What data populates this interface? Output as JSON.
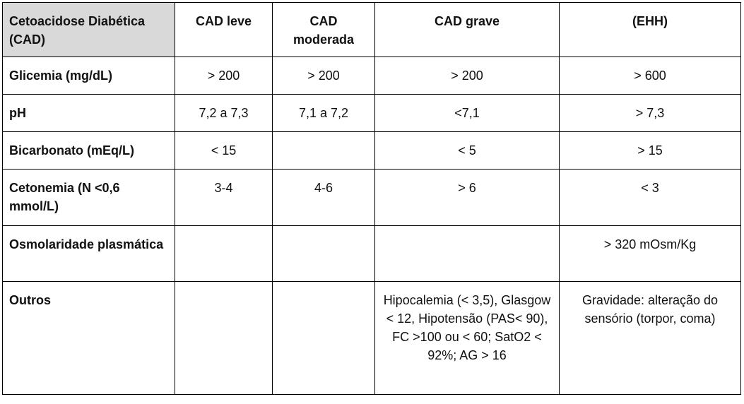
{
  "table": {
    "header": {
      "corner": "Cetoacidose Diabética (CAD)",
      "columns": [
        "CAD leve",
        "CAD moderada",
        "CAD grave",
        "(EHH)"
      ]
    },
    "rows": [
      {
        "label": "Glicemia (mg/dL)",
        "cells": [
          "> 200",
          "> 200",
          "> 200",
          "> 600"
        ]
      },
      {
        "label": "pH",
        "cells": [
          "7,2 a 7,3",
          "7,1 a 7,2",
          "<7,1",
          "> 7,3"
        ]
      },
      {
        "label": "Bicarbonato (mEq/L)",
        "cells": [
          "< 15",
          "",
          "< 5",
          "> 15"
        ]
      },
      {
        "label": "Cetonemia (N <0,6 mmol/L)",
        "cells": [
          "3-4",
          "4-6",
          "> 6",
          "< 3"
        ]
      },
      {
        "label": "Osmolaridade plasmática",
        "cells": [
          "",
          "",
          "",
          "> 320 mOsm/Kg"
        ]
      },
      {
        "label": "Outros",
        "cells": [
          "",
          "",
          "Hipocalemia (< 3,5), Glasgow < 12, Hipotensão (PAS< 90), FC >100 ou < 60; SatO2 < 92%; AG > 16",
          "Gravidade: alteração do sensório (torpor, coma)"
        ]
      }
    ]
  }
}
